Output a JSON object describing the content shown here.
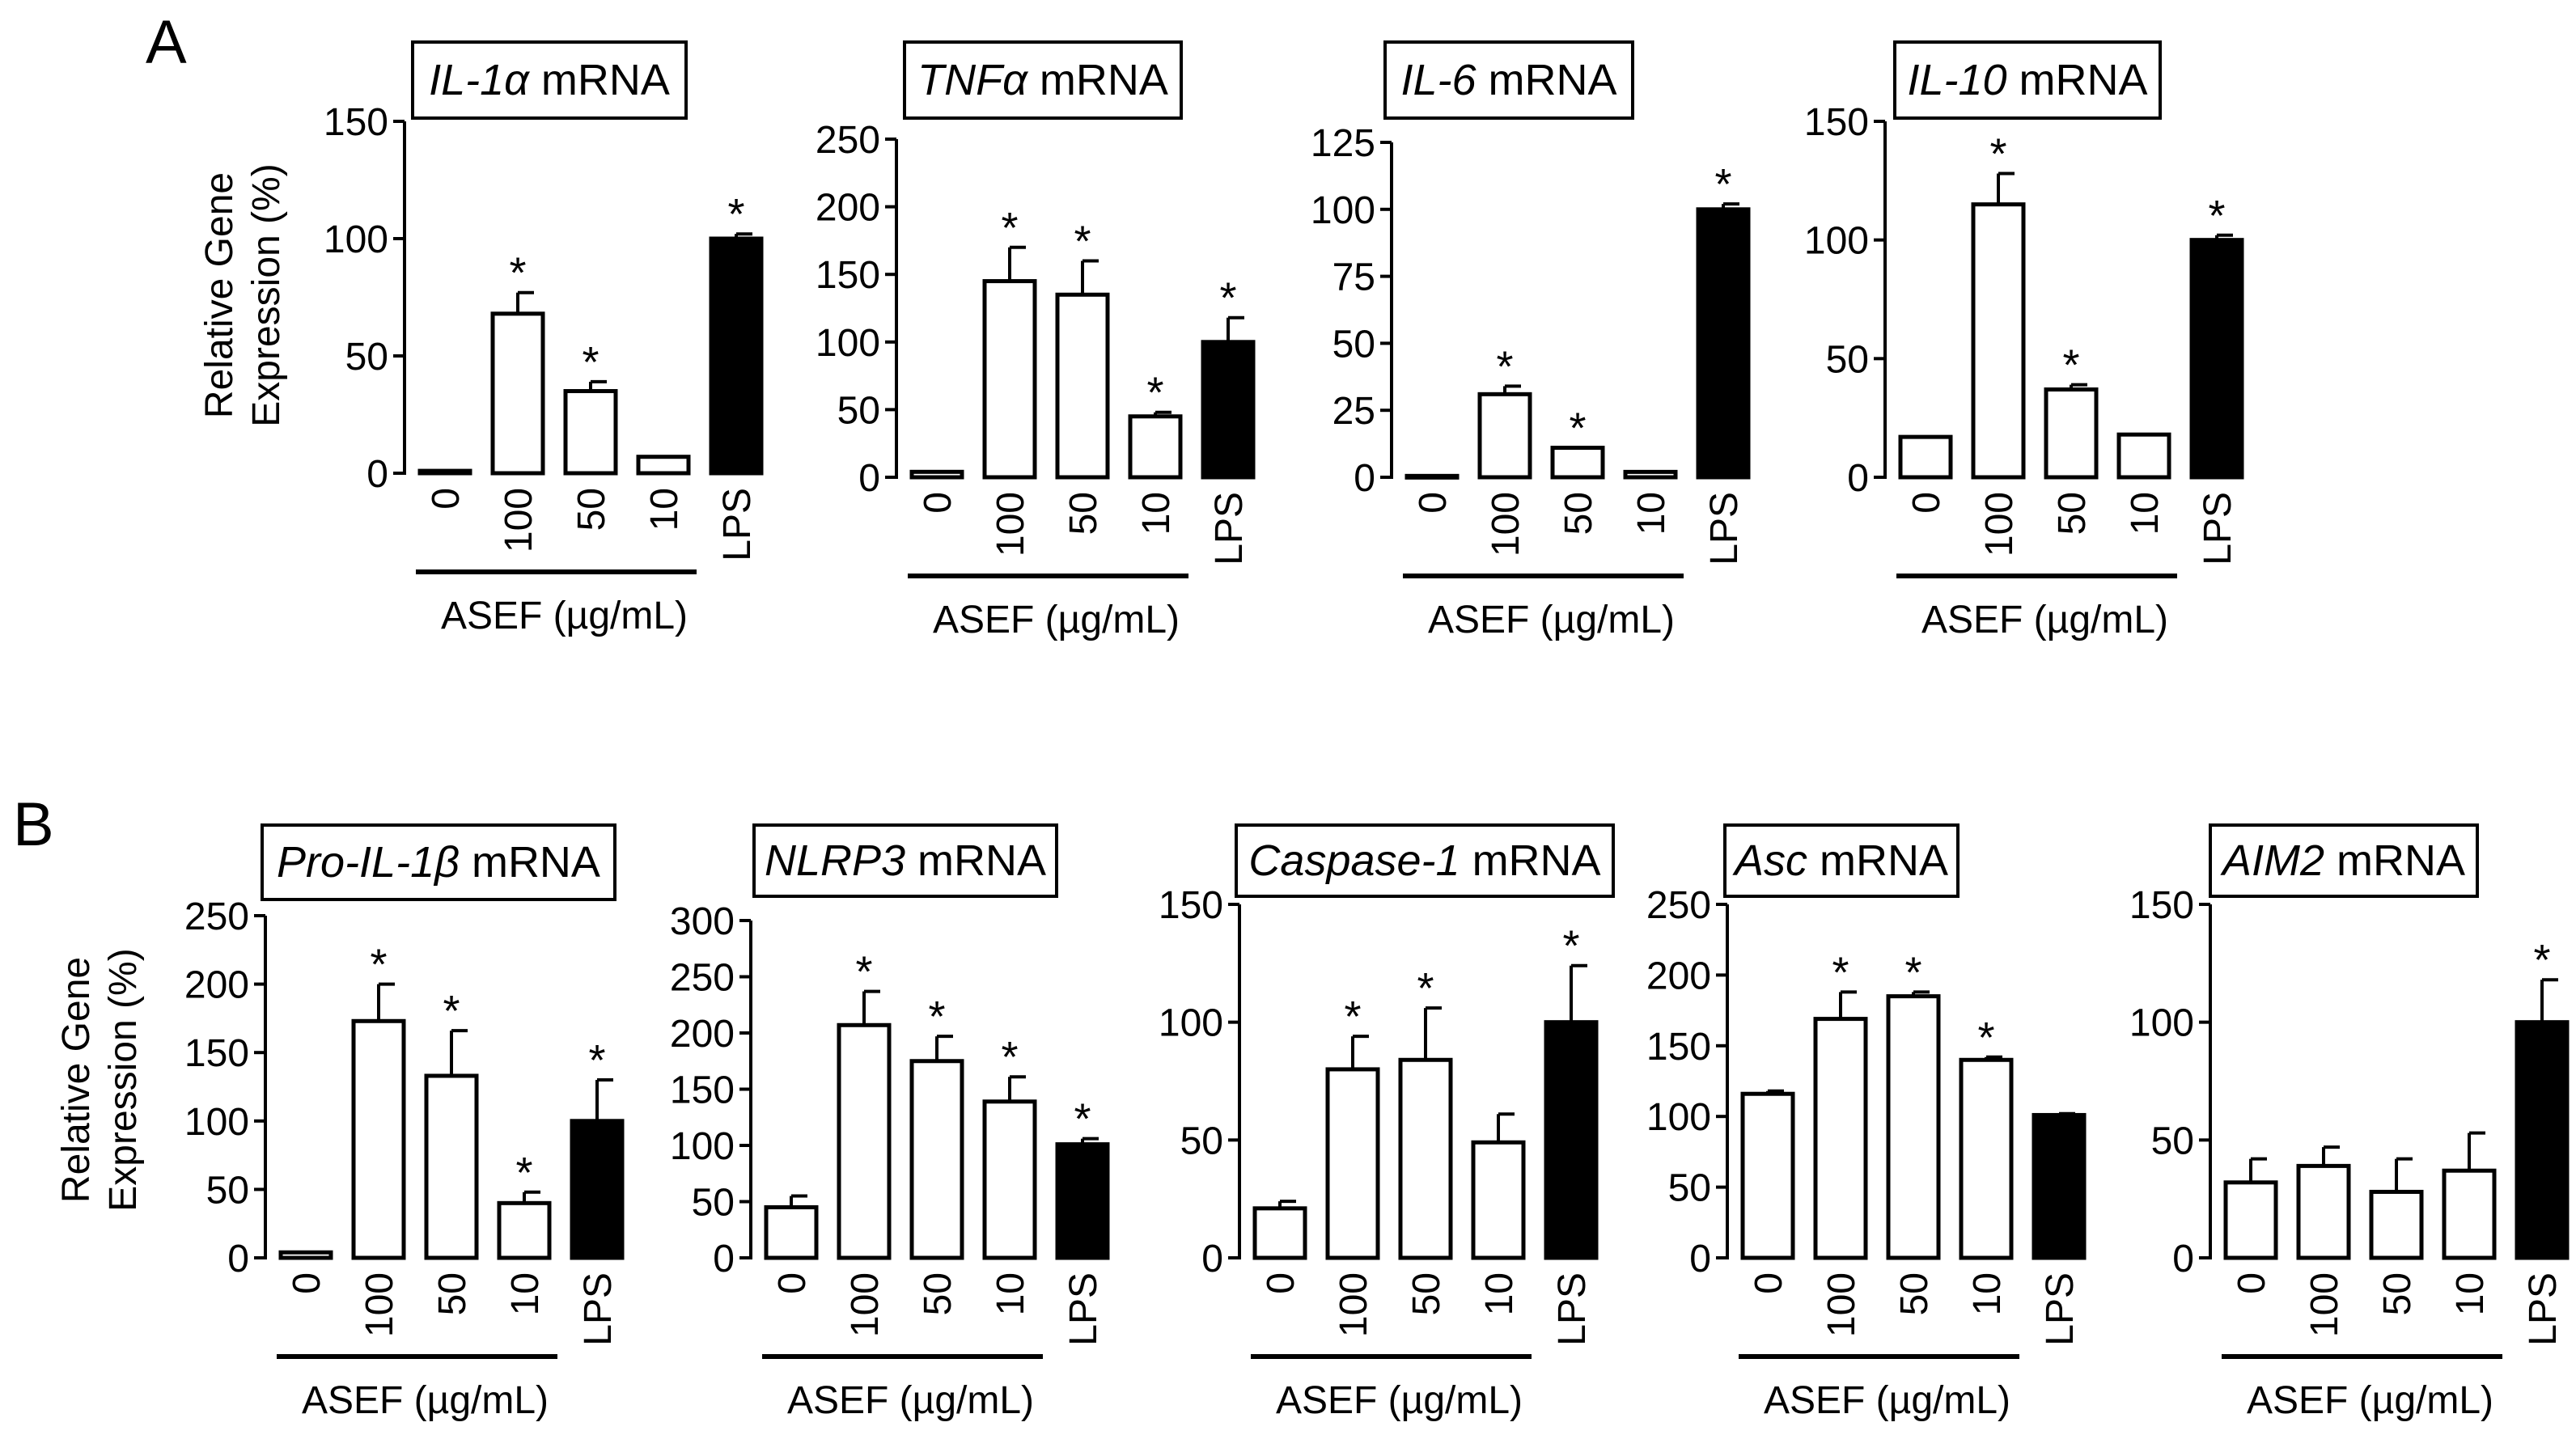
{
  "panel_labels": [
    "A",
    "B"
  ],
  "common": {
    "ylabel_line1": "Relative Gene",
    "ylabel_line2": "Expression (%)",
    "group_label_a": "ASEF (µg/mL)",
    "group_label_b": "ASEF  (µg/mL)"
  },
  "chart_data": [
    {
      "type": "bar",
      "panel": "A",
      "title_gene": "IL-1α",
      "title_suffix": "mRNA",
      "xlabel": "ASEF (µg/mL)",
      "ylabel": "Relative Gene Expression (%)",
      "categories": [
        "0",
        "100",
        "50",
        "10",
        "LPS"
      ],
      "values": [
        1,
        68,
        35,
        7,
        100
      ],
      "errors": [
        0,
        9,
        4,
        0,
        2
      ],
      "significant": [
        false,
        true,
        true,
        false,
        true
      ],
      "ylim": [
        0,
        150
      ],
      "yticks": [
        0,
        50,
        100,
        150
      ]
    },
    {
      "type": "bar",
      "panel": "A",
      "title_gene": "TNFα",
      "title_suffix": "mRNA",
      "xlabel": "ASEF (µg/mL)",
      "ylabel": "Relative Gene Expression (%)",
      "categories": [
        "0",
        "100",
        "50",
        "10",
        "LPS"
      ],
      "values": [
        4,
        145,
        135,
        45,
        100
      ],
      "errors": [
        0,
        25,
        25,
        3,
        18
      ],
      "significant": [
        false,
        true,
        true,
        true,
        true
      ],
      "ylim": [
        0,
        250
      ],
      "yticks": [
        0,
        50,
        100,
        150,
        200,
        250
      ]
    },
    {
      "type": "bar",
      "panel": "A",
      "title_gene": "IL-6",
      "title_suffix": "mRNA",
      "xlabel": "ASEF (µg/mL)",
      "ylabel": "Relative Gene Expression (%)",
      "categories": [
        "0",
        "100",
        "50",
        "10",
        "LPS"
      ],
      "values": [
        0.5,
        31,
        11,
        2,
        100
      ],
      "errors": [
        0,
        3,
        0,
        0,
        2
      ],
      "significant": [
        false,
        true,
        true,
        false,
        true
      ],
      "ylim": [
        0,
        125
      ],
      "yticks": [
        0,
        25,
        50,
        75,
        100,
        125
      ]
    },
    {
      "type": "bar",
      "panel": "A",
      "title_gene": "IL-10",
      "title_suffix": "mRNA",
      "xlabel": "ASEF (µg/mL)",
      "ylabel": "Relative Gene Expression (%)",
      "categories": [
        "0",
        "100",
        "50",
        "10",
        "LPS"
      ],
      "values": [
        17,
        115,
        37,
        18,
        100
      ],
      "errors": [
        0,
        13,
        2,
        0,
        2
      ],
      "significant": [
        false,
        true,
        true,
        false,
        true
      ],
      "ylim": [
        0,
        150
      ],
      "yticks": [
        0,
        50,
        100,
        150
      ]
    },
    {
      "type": "bar",
      "panel": "B",
      "title_gene": "Pro-IL-1β",
      "title_suffix": "mRNA",
      "xlabel": "ASEF (µg/mL)",
      "ylabel": "Relative Gene Expression (%)",
      "categories": [
        "0",
        "100",
        "50",
        "10",
        "LPS"
      ],
      "values": [
        4,
        173,
        133,
        40,
        100
      ],
      "errors": [
        0,
        27,
        33,
        8,
        30
      ],
      "significant": [
        false,
        true,
        true,
        true,
        true
      ],
      "ylim": [
        0,
        250
      ],
      "yticks": [
        0,
        50,
        100,
        150,
        200,
        250
      ]
    },
    {
      "type": "bar",
      "panel": "B",
      "title_gene": "NLRP3",
      "title_suffix": "mRNA",
      "xlabel": "ASEF (µg/mL)",
      "ylabel": "Relative Gene Expression (%)",
      "categories": [
        "0",
        "100",
        "50",
        "10",
        "LPS"
      ],
      "values": [
        45,
        207,
        175,
        139,
        101
      ],
      "errors": [
        10,
        30,
        22,
        22,
        5
      ],
      "significant": [
        false,
        true,
        true,
        true,
        true
      ],
      "ylim": [
        0,
        300
      ],
      "yticks": [
        0,
        50,
        100,
        150,
        200,
        250,
        300
      ]
    },
    {
      "type": "bar",
      "panel": "B",
      "title_gene": "Caspase-1",
      "title_suffix": "mRNA",
      "xlabel": "ASEF (µg/mL)",
      "ylabel": "Relative Gene Expression (%)",
      "categories": [
        "0",
        "100",
        "50",
        "10",
        "LPS"
      ],
      "values": [
        21,
        80,
        84,
        49,
        100
      ],
      "errors": [
        3,
        14,
        22,
        12,
        24
      ],
      "significant": [
        false,
        true,
        true,
        false,
        true
      ],
      "ylim": [
        0,
        150
      ],
      "yticks": [
        0,
        50,
        100,
        150
      ]
    },
    {
      "type": "bar",
      "panel": "B",
      "title_gene": "Asc",
      "title_suffix": "mRNA",
      "xlabel": "ASEF (µg/mL)",
      "ylabel": "Relative Gene Expression (%)",
      "categories": [
        "0",
        "100",
        "50",
        "10",
        "LPS"
      ],
      "values": [
        116,
        169,
        185,
        140,
        101
      ],
      "errors": [
        2,
        19,
        3,
        2,
        1
      ],
      "significant": [
        false,
        true,
        true,
        true,
        false
      ],
      "ylim": [
        0,
        250
      ],
      "yticks": [
        0,
        50,
        100,
        150,
        200,
        250
      ]
    },
    {
      "type": "bar",
      "panel": "B",
      "title_gene": "AIM2",
      "title_suffix": "mRNA",
      "xlabel": "ASEF (µg/mL)",
      "ylabel": "Relative Gene Expression (%)",
      "categories": [
        "0",
        "100",
        "50",
        "10",
        "LPS"
      ],
      "values": [
        32,
        39,
        28,
        37,
        100
      ],
      "errors": [
        10,
        8,
        14,
        16,
        18
      ],
      "significant": [
        false,
        false,
        false,
        false,
        true
      ],
      "ylim": [
        0,
        150
      ],
      "yticks": [
        0,
        50,
        100,
        150
      ]
    }
  ]
}
